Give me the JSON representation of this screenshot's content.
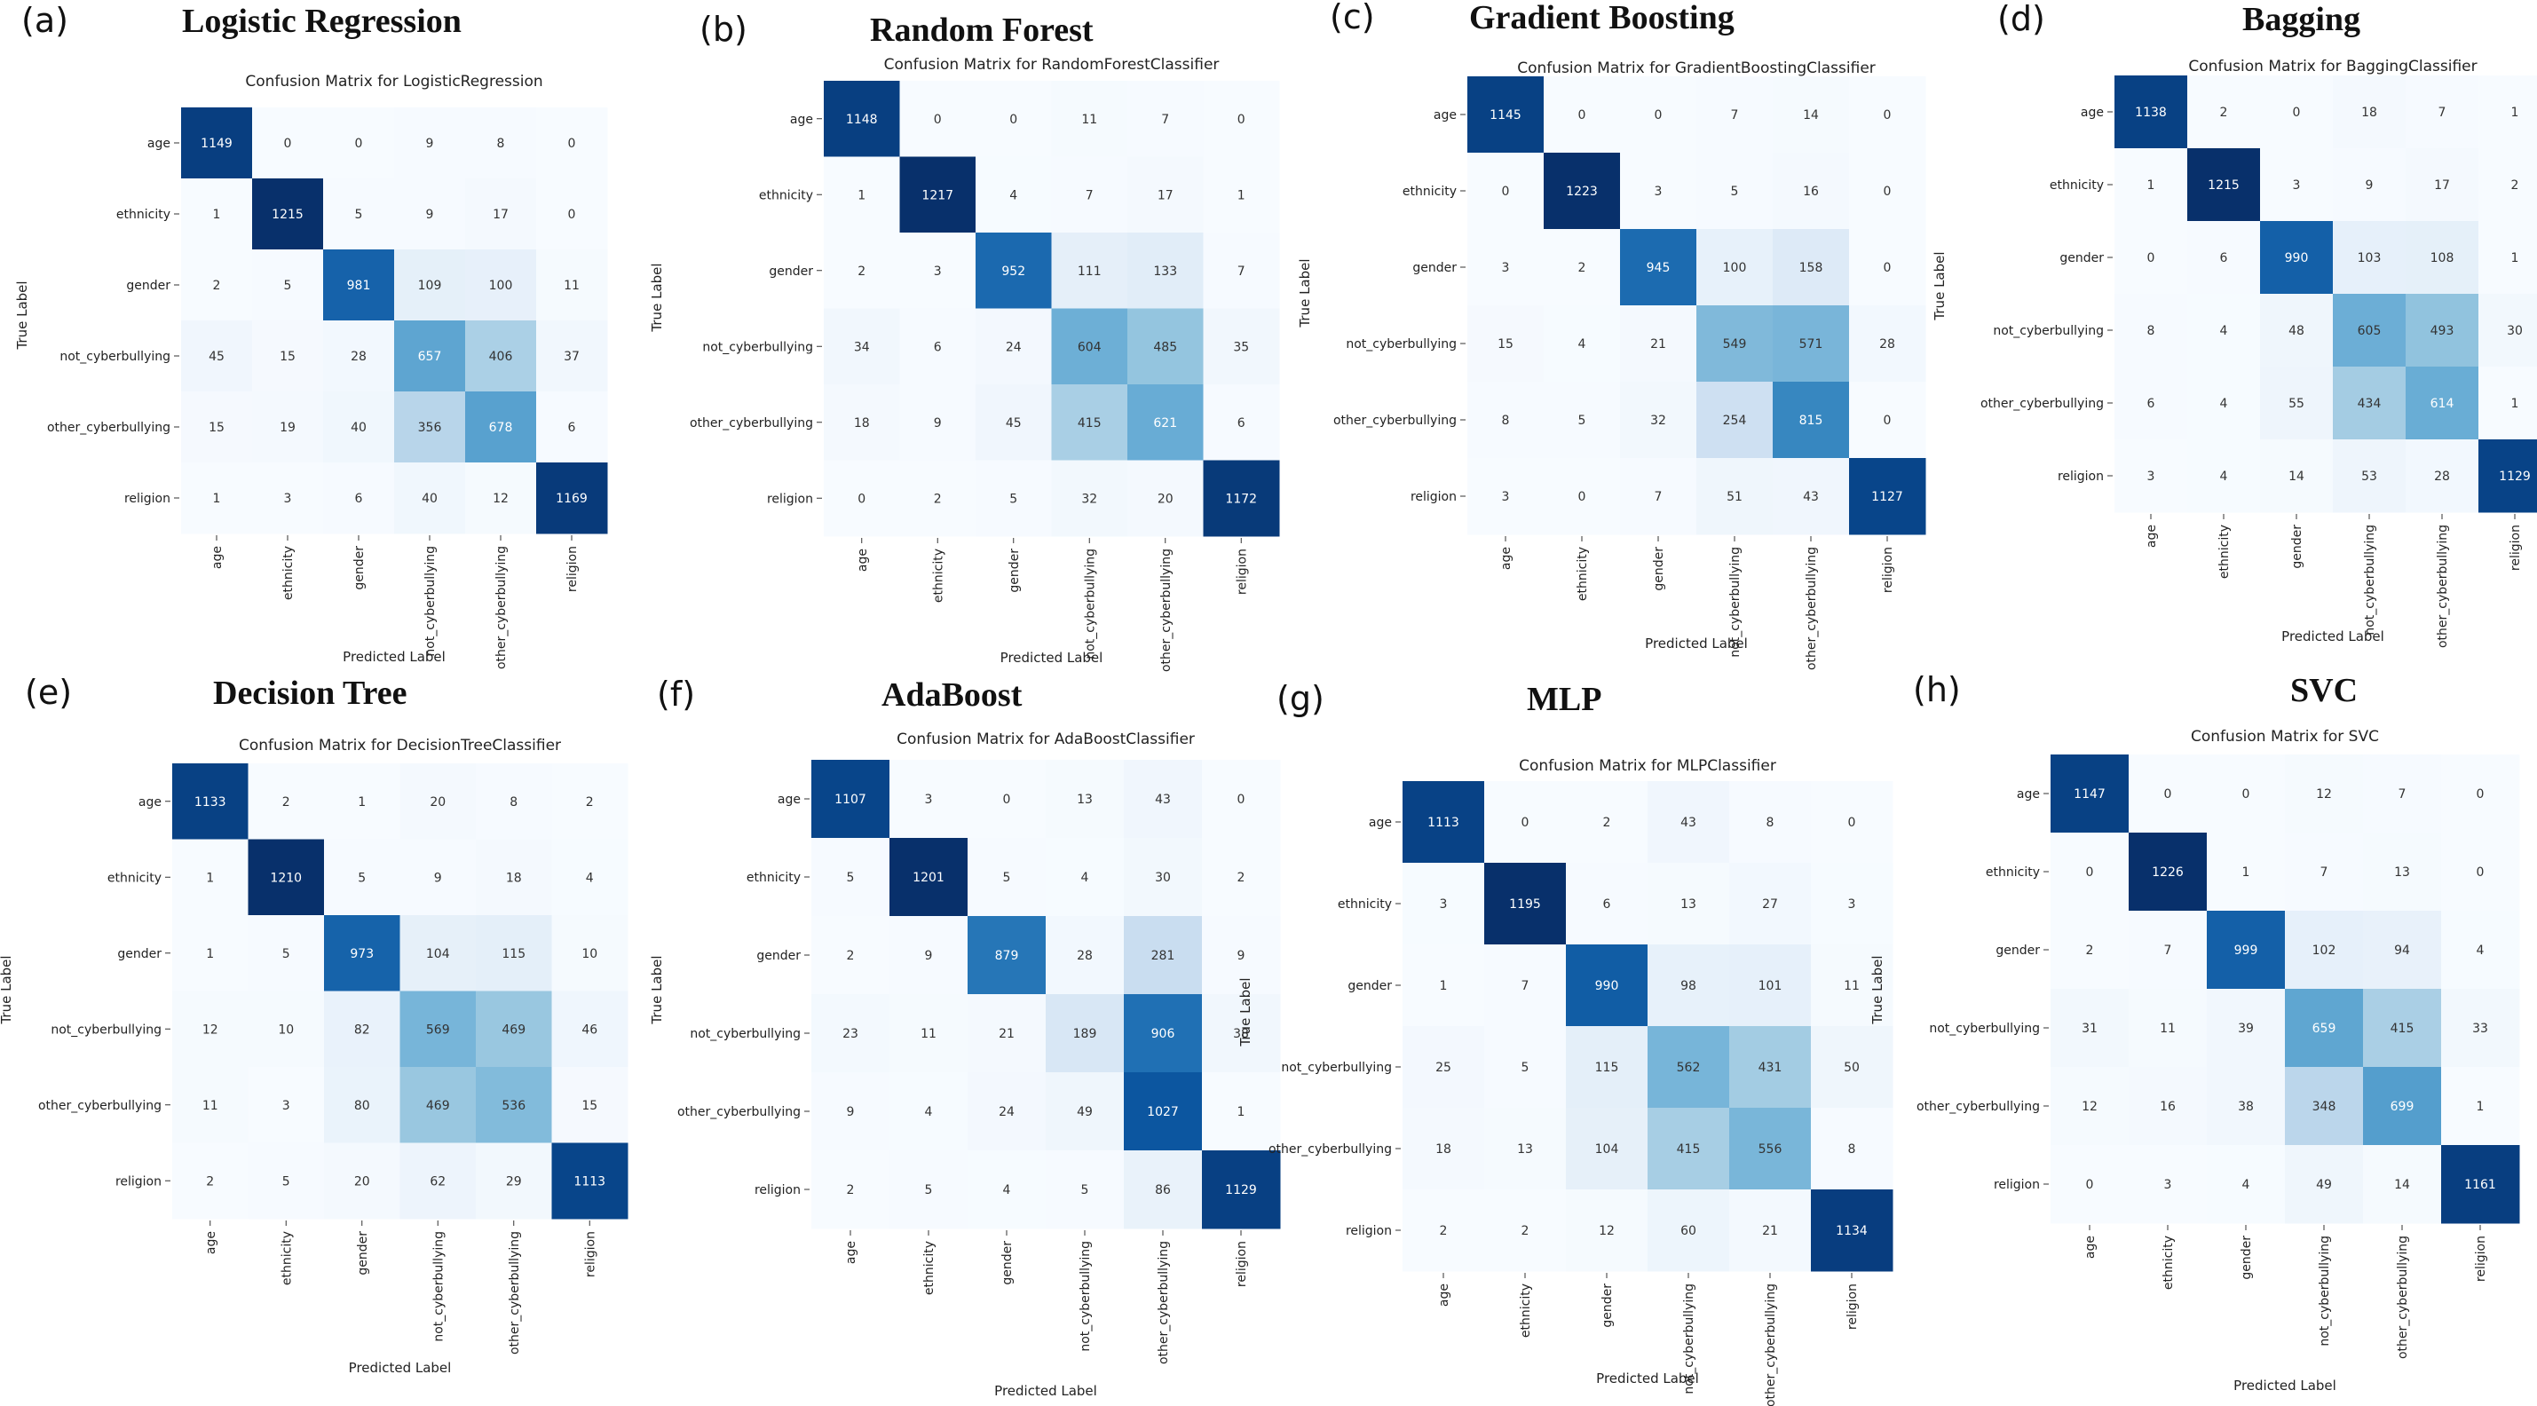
{
  "row_labels": [
    "age",
    "ethnicity",
    "gender",
    "not_cyberbullying",
    "other_cyberbullying",
    "religion"
  ],
  "x_axis_label": "Predicted Label",
  "y_axis_label": "True Label",
  "chart_data": [
    {
      "type": "heatmap",
      "panel": "(a)",
      "heading": "Logistic Regression",
      "title": "Confusion Matrix for LogisticRegression",
      "values": [
        [
          1149,
          0,
          0,
          9,
          8,
          0
        ],
        [
          1,
          1215,
          5,
          9,
          17,
          0
        ],
        [
          2,
          5,
          981,
          109,
          100,
          11
        ],
        [
          45,
          15,
          28,
          657,
          406,
          37
        ],
        [
          15,
          19,
          40,
          356,
          678,
          6
        ],
        [
          1,
          3,
          6,
          40,
          12,
          1169
        ]
      ]
    },
    {
      "type": "heatmap",
      "panel": "(b)",
      "heading": "Random Forest",
      "title": "Confusion Matrix for RandomForestClassifier",
      "values": [
        [
          1148,
          0,
          0,
          11,
          7,
          0
        ],
        [
          1,
          1217,
          4,
          7,
          17,
          1
        ],
        [
          2,
          3,
          952,
          111,
          133,
          7
        ],
        [
          34,
          6,
          24,
          604,
          485,
          35
        ],
        [
          18,
          9,
          45,
          415,
          621,
          6
        ],
        [
          0,
          2,
          5,
          32,
          20,
          1172
        ]
      ]
    },
    {
      "type": "heatmap",
      "panel": "(c)",
      "heading": "Gradient Boosting",
      "title": "Confusion Matrix for GradientBoostingClassifier",
      "values": [
        [
          1145,
          0,
          0,
          7,
          14,
          0
        ],
        [
          0,
          1223,
          3,
          5,
          16,
          0
        ],
        [
          3,
          2,
          945,
          100,
          158,
          0
        ],
        [
          15,
          4,
          21,
          549,
          571,
          28
        ],
        [
          8,
          5,
          32,
          254,
          815,
          0
        ],
        [
          3,
          0,
          7,
          51,
          43,
          1127
        ]
      ]
    },
    {
      "type": "heatmap",
      "panel": "(d)",
      "heading": "Bagging",
      "title": "Confusion Matrix for BaggingClassifier",
      "values": [
        [
          1138,
          2,
          0,
          18,
          7,
          1
        ],
        [
          1,
          1215,
          3,
          9,
          17,
          2
        ],
        [
          0,
          6,
          990,
          103,
          108,
          1
        ],
        [
          8,
          4,
          48,
          605,
          493,
          30
        ],
        [
          6,
          4,
          55,
          434,
          614,
          1
        ],
        [
          3,
          4,
          14,
          53,
          28,
          1129
        ]
      ]
    },
    {
      "type": "heatmap",
      "panel": "(e)",
      "heading": "Decision Tree",
      "title": "Confusion Matrix for DecisionTreeClassifier",
      "values": [
        [
          1133,
          2,
          1,
          20,
          8,
          2
        ],
        [
          1,
          1210,
          5,
          9,
          18,
          4
        ],
        [
          1,
          5,
          973,
          104,
          115,
          10
        ],
        [
          12,
          10,
          82,
          569,
          469,
          46
        ],
        [
          11,
          3,
          80,
          469,
          536,
          15
        ],
        [
          2,
          5,
          20,
          62,
          29,
          1113
        ]
      ]
    },
    {
      "type": "heatmap",
      "panel": "(f)",
      "heading": "AdaBoost",
      "title": "Confusion Matrix for AdaBoostClassifier",
      "values": [
        [
          1107,
          3,
          0,
          13,
          43,
          0
        ],
        [
          5,
          1201,
          5,
          4,
          30,
          2
        ],
        [
          2,
          9,
          879,
          28,
          281,
          9
        ],
        [
          23,
          11,
          21,
          189,
          906,
          38
        ],
        [
          9,
          4,
          24,
          49,
          1027,
          1
        ],
        [
          2,
          5,
          4,
          5,
          86,
          1129
        ]
      ]
    },
    {
      "type": "heatmap",
      "panel": "(g)",
      "heading": "MLP",
      "title": "Confusion Matrix for MLPClassifier",
      "values": [
        [
          1113,
          0,
          2,
          43,
          8,
          0
        ],
        [
          3,
          1195,
          6,
          13,
          27,
          3
        ],
        [
          1,
          7,
          990,
          98,
          101,
          11
        ],
        [
          25,
          5,
          115,
          562,
          431,
          50
        ],
        [
          18,
          13,
          104,
          415,
          556,
          8
        ],
        [
          2,
          2,
          12,
          60,
          21,
          1134
        ]
      ]
    },
    {
      "type": "heatmap",
      "panel": "(h)",
      "heading": "SVC",
      "title": "Confusion Matrix for SVC",
      "values": [
        [
          1147,
          0,
          0,
          12,
          7,
          0
        ],
        [
          0,
          1226,
          1,
          7,
          13,
          0
        ],
        [
          2,
          7,
          999,
          102,
          94,
          4
        ],
        [
          31,
          11,
          39,
          659,
          415,
          33
        ],
        [
          12,
          16,
          38,
          348,
          699,
          1
        ],
        [
          0,
          3,
          4,
          49,
          14,
          1161
        ]
      ]
    }
  ]
}
